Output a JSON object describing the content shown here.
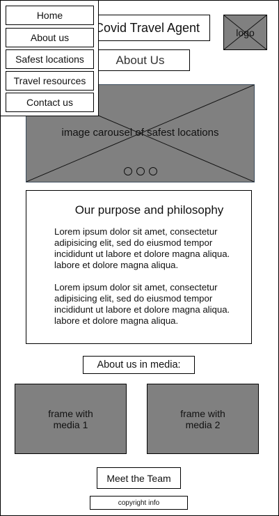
{
  "header": {
    "title": "Covid Travel Agent",
    "logo_label": "logo",
    "page_heading": "About Us"
  },
  "nav": {
    "items": [
      {
        "label": "Home"
      },
      {
        "label": "About us"
      },
      {
        "label": "Safest locations"
      },
      {
        "label": "Travel resources"
      },
      {
        "label": "Contact us"
      }
    ]
  },
  "carousel": {
    "caption": "image carousel of safest locations",
    "dot_count": 3
  },
  "purpose": {
    "heading": "Our purpose and philosophy",
    "paragraphs": [
      "Lorem ipsum dolor sit amet, consectetur adipisicing elit, sed do eiusmod tempor incididunt ut labore et dolore magna aliqua. labore et dolore magna aliqua.",
      "Lorem ipsum dolor sit amet, consectetur adipisicing elit, sed do eiusmod tempor incididunt ut labore et dolore magna aliqua. labore et dolore magna aliqua."
    ]
  },
  "media": {
    "label": "About us in media:",
    "frames": [
      {
        "label": "frame with\nmedia 1"
      },
      {
        "label": "frame with\nmedia 2"
      }
    ]
  },
  "footer": {
    "team_button": "Meet the Team",
    "copyright": "copyright info"
  },
  "colors": {
    "placeholder_fill": "#808080",
    "border": "#000000",
    "background": "#ffffff"
  }
}
